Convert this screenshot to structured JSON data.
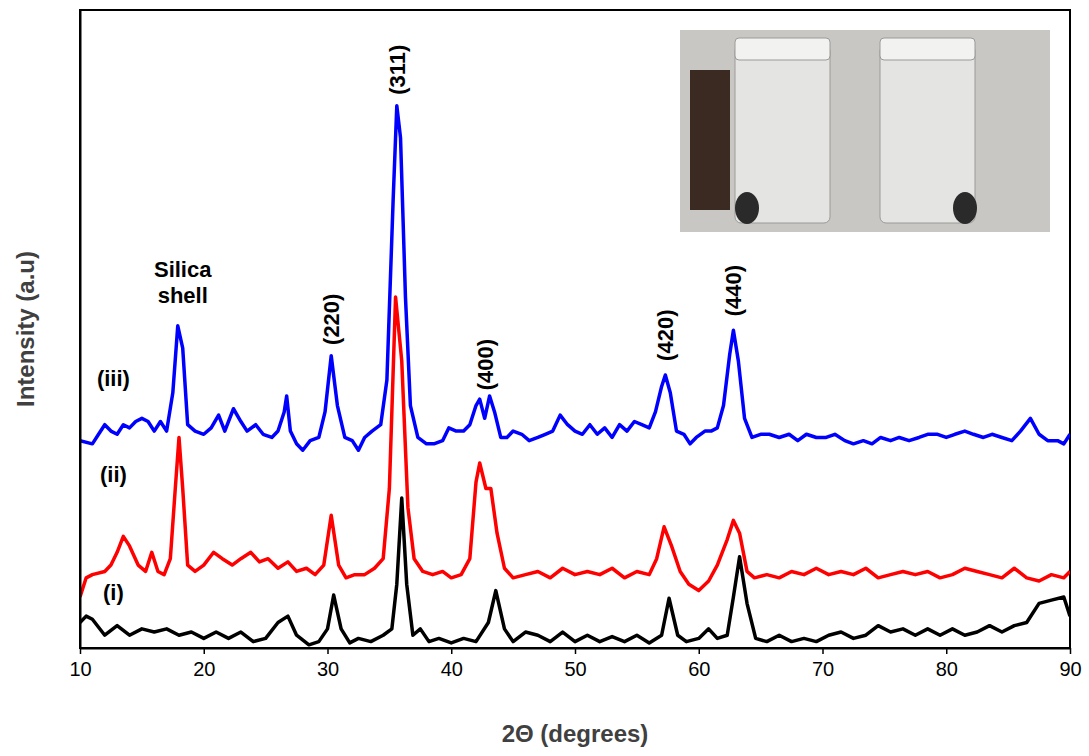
{
  "chart_data": {
    "type": "line",
    "x_label": "2Θ (degrees)",
    "y_label": "Intensity (a.u)",
    "xlim": [
      10,
      90
    ],
    "xticks": [
      10,
      20,
      30,
      40,
      50,
      60,
      70,
      80,
      90
    ],
    "ylim": [
      0,
      100
    ],
    "yticks": [],
    "tick_labels": "x",
    "grid": false,
    "series": [
      {
        "color": "#000000",
        "x": [
          10,
          10.5,
          11,
          12,
          13,
          14,
          15,
          16,
          17,
          18,
          19,
          20,
          21,
          22,
          23,
          24,
          25,
          26,
          26.8,
          27.5,
          28.5,
          29.3,
          30,
          30.5,
          31.1,
          31.8,
          32.5,
          33.5,
          34.5,
          35.2,
          35.6,
          36,
          36.4,
          36.9,
          37.5,
          38.2,
          39,
          40,
          41,
          42,
          43,
          43.6,
          44.3,
          45,
          46,
          47,
          48,
          49,
          50,
          51,
          52,
          53,
          54,
          55,
          56,
          57,
          57.6,
          58.3,
          59,
          60,
          60.8,
          61.5,
          62.3,
          62.8,
          63.3,
          63.9,
          64.6,
          65.5,
          66.5,
          67.5,
          68.5,
          69.5,
          70.5,
          71.5,
          72.5,
          73.5,
          74.5,
          75.5,
          76.5,
          77.5,
          78.5,
          79.5,
          80.5,
          81.5,
          82.5,
          83.5,
          84.5,
          85.5,
          86.5,
          87.5,
          88.5,
          89.5,
          90
        ],
        "values": [
          4,
          5,
          4.5,
          2,
          3.5,
          2,
          3,
          2.5,
          3,
          2,
          2.5,
          1.5,
          2.5,
          1.5,
          2.5,
          1,
          1.5,
          4,
          5,
          2,
          0.5,
          1,
          3,
          8.3,
          3,
          0.8,
          1.5,
          1,
          2,
          3,
          10,
          23.5,
          10,
          2,
          3,
          1,
          1.5,
          0.8,
          1.5,
          1,
          4,
          9,
          3,
          1,
          2.5,
          2,
          1,
          2.5,
          1,
          2,
          1,
          1.8,
          1,
          2,
          0.8,
          2,
          7.8,
          2,
          1,
          1.5,
          3,
          1.5,
          2,
          8,
          14.3,
          7,
          1.5,
          1,
          2,
          1,
          1.5,
          1,
          2,
          2.5,
          1.5,
          2,
          3.5,
          2.5,
          3,
          2,
          3,
          2,
          3,
          2,
          2.5,
          3.5,
          2.5,
          3.5,
          4,
          7,
          7.5,
          8,
          5
        ]
      },
      {
        "color": "#ff0000",
        "x": [
          10,
          10.5,
          11,
          12,
          12.5,
          13,
          13.5,
          14,
          14.7,
          15.3,
          15.8,
          16.3,
          16.8,
          17.3,
          17.7,
          18,
          18.3,
          18.7,
          19.3,
          20,
          20.8,
          21.5,
          22.3,
          23,
          23.8,
          24.5,
          25.2,
          26,
          26.8,
          27.5,
          28.3,
          29,
          29.7,
          30.3,
          30.9,
          31.5,
          32.2,
          33,
          33.8,
          34.5,
          35,
          35.5,
          36,
          36.5,
          37,
          37.7,
          38.5,
          39.3,
          40,
          40.8,
          41.5,
          42,
          42.3,
          42.8,
          43.2,
          43.7,
          44.3,
          45,
          46,
          47,
          48,
          49,
          50,
          51,
          52,
          53,
          54,
          55,
          56,
          56.6,
          57.2,
          57.8,
          58.5,
          59.2,
          60,
          60.8,
          61.5,
          62.3,
          62.8,
          63.3,
          63.9,
          64.5,
          65.5,
          66.5,
          67.5,
          68.5,
          69.5,
          70.5,
          71.5,
          72.5,
          73.5,
          74.5,
          75.5,
          76.5,
          77.5,
          78.5,
          79.5,
          80.5,
          81.5,
          82.5,
          83.5,
          84.5,
          85.5,
          86.5,
          87.5,
          88.5,
          89.5,
          90
        ],
        "values": [
          8,
          11,
          11.5,
          12,
          13,
          15,
          17.5,
          16,
          13,
          12,
          15,
          12,
          11.5,
          14,
          25,
          33,
          25,
          13,
          12,
          13,
          15,
          14,
          13,
          14,
          15,
          13.5,
          14,
          12.5,
          13.5,
          12,
          12.5,
          11.5,
          13,
          20.8,
          13,
          11,
          11.5,
          11.5,
          12.5,
          14,
          25,
          55,
          45,
          22,
          14,
          12,
          11.5,
          12,
          11,
          11.5,
          14,
          26,
          29,
          25,
          25,
          18,
          12.5,
          11,
          11.5,
          12,
          11,
          12.5,
          11.5,
          12,
          11.5,
          12.5,
          11,
          12,
          11.5,
          14,
          19,
          16,
          12,
          10,
          9,
          10.5,
          13,
          17,
          20,
          18,
          12,
          11,
          11.5,
          11,
          12,
          11.5,
          12.5,
          11.5,
          12,
          11.5,
          12.5,
          11,
          11.5,
          12,
          11.5,
          12,
          11,
          11.5,
          12.5,
          12,
          11.5,
          11,
          12.5,
          11,
          10.5,
          11.5,
          11,
          12
        ]
      },
      {
        "color": "#0000ff",
        "x": [
          10,
          11,
          11.5,
          12,
          12.5,
          13,
          13.5,
          14,
          14.5,
          15,
          15.5,
          16,
          16.5,
          17,
          17.5,
          17.9,
          18.3,
          18.7,
          19.3,
          20,
          20.6,
          21.2,
          21.7,
          22.4,
          23,
          23.5,
          24.2,
          24.8,
          25.5,
          26,
          26.5,
          26.7,
          27,
          27.5,
          28,
          28.6,
          29.3,
          29.8,
          30.3,
          30.8,
          31.4,
          32,
          32.5,
          33,
          33.6,
          34.3,
          34.8,
          35.3,
          35.6,
          35.9,
          36.3,
          36.7,
          37.3,
          38,
          38.6,
          39.3,
          39.8,
          40.4,
          41,
          41.5,
          42,
          42.3,
          42.7,
          43.1,
          43.5,
          44,
          44.5,
          45,
          45.7,
          46.3,
          47,
          47.6,
          48.2,
          48.8,
          49.4,
          50,
          50.6,
          51.2,
          51.8,
          52.4,
          53,
          53.6,
          54.2,
          54.8,
          55.4,
          56,
          56.5,
          57,
          57.3,
          57.7,
          58.2,
          58.8,
          59.3,
          59.8,
          60.5,
          61,
          61.5,
          62,
          62.5,
          62.8,
          63.2,
          63.7,
          64.3,
          65,
          65.7,
          66.5,
          67.3,
          68,
          68.7,
          69.5,
          70.3,
          71,
          71.8,
          72.5,
          73.3,
          74,
          74.7,
          75.5,
          76.2,
          77,
          77.8,
          78.5,
          79.3,
          80,
          80.7,
          81.5,
          82.2,
          83,
          83.7,
          84.5,
          85.3,
          86,
          86.8,
          87.5,
          88.2,
          89,
          89.5,
          90
        ],
        "values": [
          32.5,
          32,
          33.5,
          35,
          34,
          33.5,
          35,
          34.5,
          35.5,
          36,
          35.5,
          34,
          35.5,
          34,
          40,
          50.5,
          47,
          35,
          34,
          33.5,
          34.5,
          36.5,
          34,
          37.5,
          35.5,
          34,
          35,
          33.5,
          33,
          34,
          37,
          39.5,
          34,
          32,
          31,
          32.5,
          33,
          37,
          45.8,
          38,
          33,
          32.5,
          31,
          33,
          34,
          35,
          42,
          70,
          85,
          80,
          55,
          38,
          33,
          32,
          32,
          32.5,
          34.5,
          34,
          34,
          35,
          38,
          39,
          36,
          39.5,
          37,
          33,
          33,
          34,
          33.5,
          32.5,
          33,
          33.5,
          34,
          36.5,
          35,
          34,
          33.5,
          35,
          33.5,
          34.5,
          33,
          35,
          34,
          35.5,
          35,
          34.5,
          37,
          41,
          42.8,
          40,
          34,
          33.5,
          32,
          33,
          34,
          34,
          34.5,
          38,
          46,
          49.8,
          45,
          36,
          33,
          33.5,
          33.5,
          33,
          33.5,
          32.5,
          33.5,
          33,
          33,
          33.5,
          32.5,
          32,
          32.5,
          32,
          33,
          32.5,
          33,
          32.5,
          33,
          33.5,
          33.5,
          33,
          33.5,
          34,
          33.5,
          33,
          33.5,
          33,
          32.5,
          34,
          36,
          33.5,
          32.5,
          32.5,
          32,
          33.5
        ]
      }
    ],
    "annotations": [
      {
        "text": "Silica shell",
        "x": 18.3,
        "y": 54
      },
      {
        "text": "(iii)",
        "x": 12.7,
        "y": 41
      },
      {
        "text": "(ii)",
        "x": 12.7,
        "y": 26
      },
      {
        "text": "(i)",
        "x": 12.7,
        "y": 7.5
      }
    ],
    "peak_labels": [
      {
        "text": "(220)",
        "x": 30.3,
        "y": 47.5
      },
      {
        "text": "(311)",
        "x": 35.6,
        "y": 86.7
      },
      {
        "text": "(400)",
        "x": 42.7,
        "y": 40.4
      },
      {
        "text": "(420)",
        "x": 57.3,
        "y": 45
      },
      {
        "text": "(440)",
        "x": 62.8,
        "y": 52
      }
    ]
  }
}
